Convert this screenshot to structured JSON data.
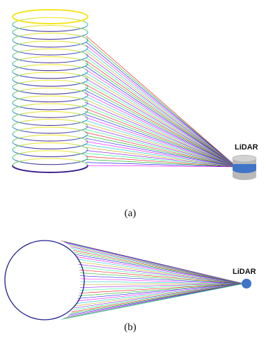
{
  "panel_a": {
    "caption": "(a)",
    "sensor_label": "LiDAR",
    "sensor_colors": {
      "top": "#d2d2d2",
      "band": "#3f74c8",
      "side": "#b9b9b9"
    }
  },
  "panel_b": {
    "caption": "(b)",
    "sensor_label": "LiDAR",
    "circle_color": "#1f1f8f",
    "sensor_color": "#3f74c8"
  },
  "colormap": [
    "#3b1f8f",
    "#2d63c4",
    "#1aa2b8",
    "#34c38a",
    "#9bd64a",
    "#f2e21a"
  ],
  "ray_colors": [
    "#ff0000",
    "#00b000",
    "#0000ff",
    "#ff00ff",
    "#00c8c8",
    "#c8a000",
    "#8000ff",
    "#00ff80"
  ]
}
